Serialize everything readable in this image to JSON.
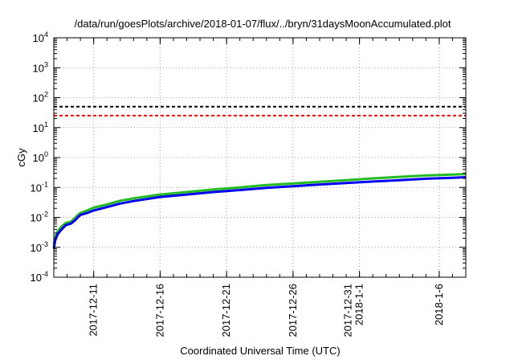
{
  "chart_data": {
    "type": "line",
    "title": "/data/run/goesPlots/archive/2018-01-07/flux/../bryn/31daysMoonAccumulated.plot",
    "xlabel": "Coordinated Universal Time (UTC)",
    "ylabel": "cGy",
    "yscale": "log",
    "ylim": [
      0.0001,
      10000
    ],
    "xlim_days": [
      0,
      31
    ],
    "grid": true,
    "y_ticks": [
      {
        "value": 0.0001,
        "base": "10",
        "exp": "-4"
      },
      {
        "value": 0.001,
        "base": "10",
        "exp": "-3"
      },
      {
        "value": 0.01,
        "base": "10",
        "exp": "-2"
      },
      {
        "value": 0.1,
        "base": "10",
        "exp": "-1"
      },
      {
        "value": 1,
        "base": "10",
        "exp": "0"
      },
      {
        "value": 10,
        "base": "10",
        "exp": "1"
      },
      {
        "value": 100,
        "base": "10",
        "exp": "2"
      },
      {
        "value": 1000,
        "base": "10",
        "exp": "3"
      },
      {
        "value": 10000,
        "base": "10",
        "exp": "4"
      }
    ],
    "x_ticks": [
      {
        "day": 3,
        "lines": [
          "2017-12-11"
        ]
      },
      {
        "day": 8,
        "lines": [
          "2017-12-16"
        ]
      },
      {
        "day": 13,
        "lines": [
          "2017-12-21"
        ]
      },
      {
        "day": 18,
        "lines": [
          "2017-12-26"
        ]
      },
      {
        "day": 23,
        "lines": [
          "2017-12-31",
          "2018-1-1"
        ]
      },
      {
        "day": 29,
        "lines": [
          "2018-1-6"
        ]
      }
    ],
    "thresholds": [
      {
        "value": 50,
        "color": "#000000"
      },
      {
        "value": 25,
        "color": "#ff0000"
      }
    ],
    "series": [
      {
        "color": "#22bb22",
        "points": [
          [
            0,
            0.0012
          ],
          [
            0.1,
            0.0022
          ],
          [
            0.3,
            0.0035
          ],
          [
            0.6,
            0.005
          ],
          [
            0.9,
            0.0065
          ],
          [
            1.3,
            0.0072
          ],
          [
            1.6,
            0.0095
          ],
          [
            1.8,
            0.012
          ],
          [
            2,
            0.014
          ],
          [
            2.5,
            0.017
          ],
          [
            3,
            0.021
          ],
          [
            4,
            0.027
          ],
          [
            5,
            0.036
          ],
          [
            6,
            0.043
          ],
          [
            7,
            0.05
          ],
          [
            8,
            0.058
          ],
          [
            10,
            0.07
          ],
          [
            12,
            0.085
          ],
          [
            14,
            0.1
          ],
          [
            16,
            0.12
          ],
          [
            18,
            0.135
          ],
          [
            20,
            0.155
          ],
          [
            22,
            0.175
          ],
          [
            24,
            0.2
          ],
          [
            26,
            0.225
          ],
          [
            28,
            0.25
          ],
          [
            30,
            0.27
          ],
          [
            31,
            0.28
          ]
        ]
      },
      {
        "color": "#0000ee",
        "points": [
          [
            0,
            0.0009
          ],
          [
            0.1,
            0.0017
          ],
          [
            0.3,
            0.0028
          ],
          [
            0.6,
            0.004
          ],
          [
            0.9,
            0.0055
          ],
          [
            1.3,
            0.0062
          ],
          [
            1.6,
            0.008
          ],
          [
            1.8,
            0.01
          ],
          [
            2,
            0.012
          ],
          [
            2.5,
            0.014
          ],
          [
            3,
            0.017
          ],
          [
            4,
            0.022
          ],
          [
            5,
            0.029
          ],
          [
            6,
            0.035
          ],
          [
            7,
            0.041
          ],
          [
            8,
            0.048
          ],
          [
            10,
            0.058
          ],
          [
            12,
            0.07
          ],
          [
            14,
            0.082
          ],
          [
            16,
            0.097
          ],
          [
            18,
            0.11
          ],
          [
            20,
            0.125
          ],
          [
            22,
            0.14
          ],
          [
            24,
            0.158
          ],
          [
            26,
            0.175
          ],
          [
            28,
            0.195
          ],
          [
            30,
            0.21
          ],
          [
            31,
            0.22
          ]
        ]
      }
    ]
  }
}
